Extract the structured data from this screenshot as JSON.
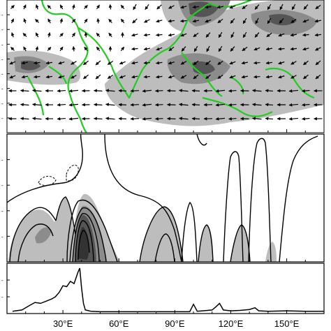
{
  "figure": {
    "panels": [
      {
        "id": "a",
        "kind": "wind-vectors-with-shading",
        "edge_label": ")"
      },
      {
        "id": "b",
        "kind": "contour-longitude-section",
        "edge_label": ")"
      },
      {
        "id": "c",
        "kind": "line-profile",
        "edge_label": ")"
      }
    ],
    "x_ticks": [
      "30°E",
      "60°E",
      "90°E",
      "120°E",
      "150°E"
    ],
    "colors": {
      "coastline": "#22cc22",
      "shade_light": "#bdbdbd",
      "shade_mid": "#8c8c8c",
      "shade_dark": "#555555",
      "line": "#000000"
    }
  },
  "chart_data": [
    {
      "type": "line",
      "panel": "c",
      "x_unit": "longitude °E",
      "x": [
        3,
        8,
        12,
        15,
        18,
        21,
        24,
        26,
        28,
        30,
        32,
        34,
        36,
        38,
        39,
        40,
        41,
        42,
        45,
        50,
        60,
        70,
        80,
        90,
        98,
        100,
        102,
        105,
        110,
        112,
        114,
        116,
        120,
        125,
        130,
        133,
        135,
        140,
        150,
        160,
        170
      ],
      "values": [
        0.02,
        0.05,
        0.15,
        0.22,
        0.2,
        0.25,
        0.3,
        0.35,
        0.45,
        0.6,
        0.58,
        0.7,
        0.65,
        0.9,
        1.0,
        0.55,
        0.2,
        0.05,
        0.02,
        0.01,
        0.01,
        0.01,
        0.01,
        0.01,
        0.01,
        0.18,
        0.02,
        0.03,
        0.05,
        0.12,
        0.2,
        0.05,
        0.03,
        0.04,
        0.06,
        0.1,
        0.03,
        0.02,
        0.03,
        0.02,
        0.02
      ],
      "xlim": [
        0,
        170
      ]
    }
  ]
}
